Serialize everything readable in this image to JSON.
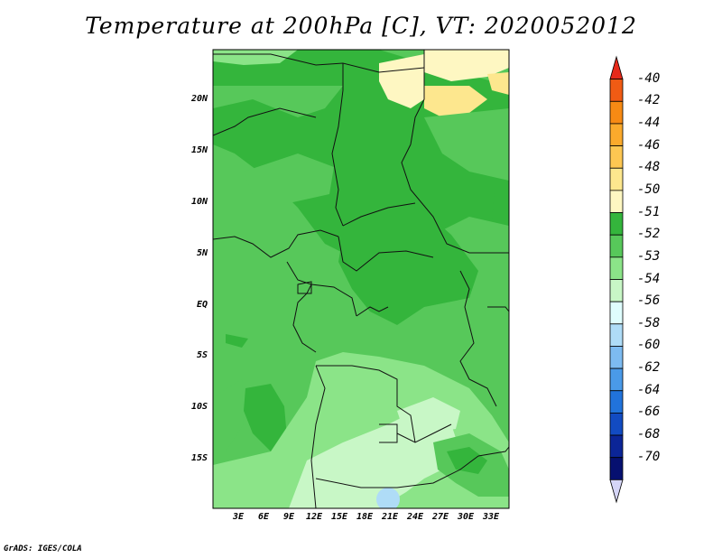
{
  "title": "Temperature at 200hPa [C], VT: 2020052012",
  "credit": "GrADS: IGES/COLA",
  "lat_labels": [
    "20N",
    "15N",
    "10N",
    "5N",
    "EQ",
    "5S",
    "10S",
    "15S"
  ],
  "lon_labels": [
    "3E",
    "6E",
    "9E",
    "12E",
    "15E",
    "18E",
    "21E",
    "24E",
    "27E",
    "30E",
    "33E"
  ],
  "colorbar": {
    "labels": [
      "-40",
      "-42",
      "-44",
      "-46",
      "-48",
      "-50",
      "-51",
      "-52",
      "-53",
      "-54",
      "-56",
      "-58",
      "-60",
      "-62",
      "-64",
      "-66",
      "-68",
      "-70"
    ],
    "colors": [
      "#e62a1a",
      "#f05b14",
      "#f78a14",
      "#fbaa2c",
      "#fdc752",
      "#fde78e",
      "#fef7c2",
      "#34b53c",
      "#57c85a",
      "#8be488",
      "#c8f7c6",
      "#dffdfd",
      "#afdcf7",
      "#7dbbf1",
      "#4a9ae8",
      "#2173db",
      "#124bc2",
      "#0b2597",
      "#061070",
      "#d5d5f7"
    ]
  },
  "legend_levels_colors": {
    "-51": "#fef7c2",
    "-52": "#34b53c",
    "-53": "#57c85a",
    "-54": "#8be488"
  }
}
